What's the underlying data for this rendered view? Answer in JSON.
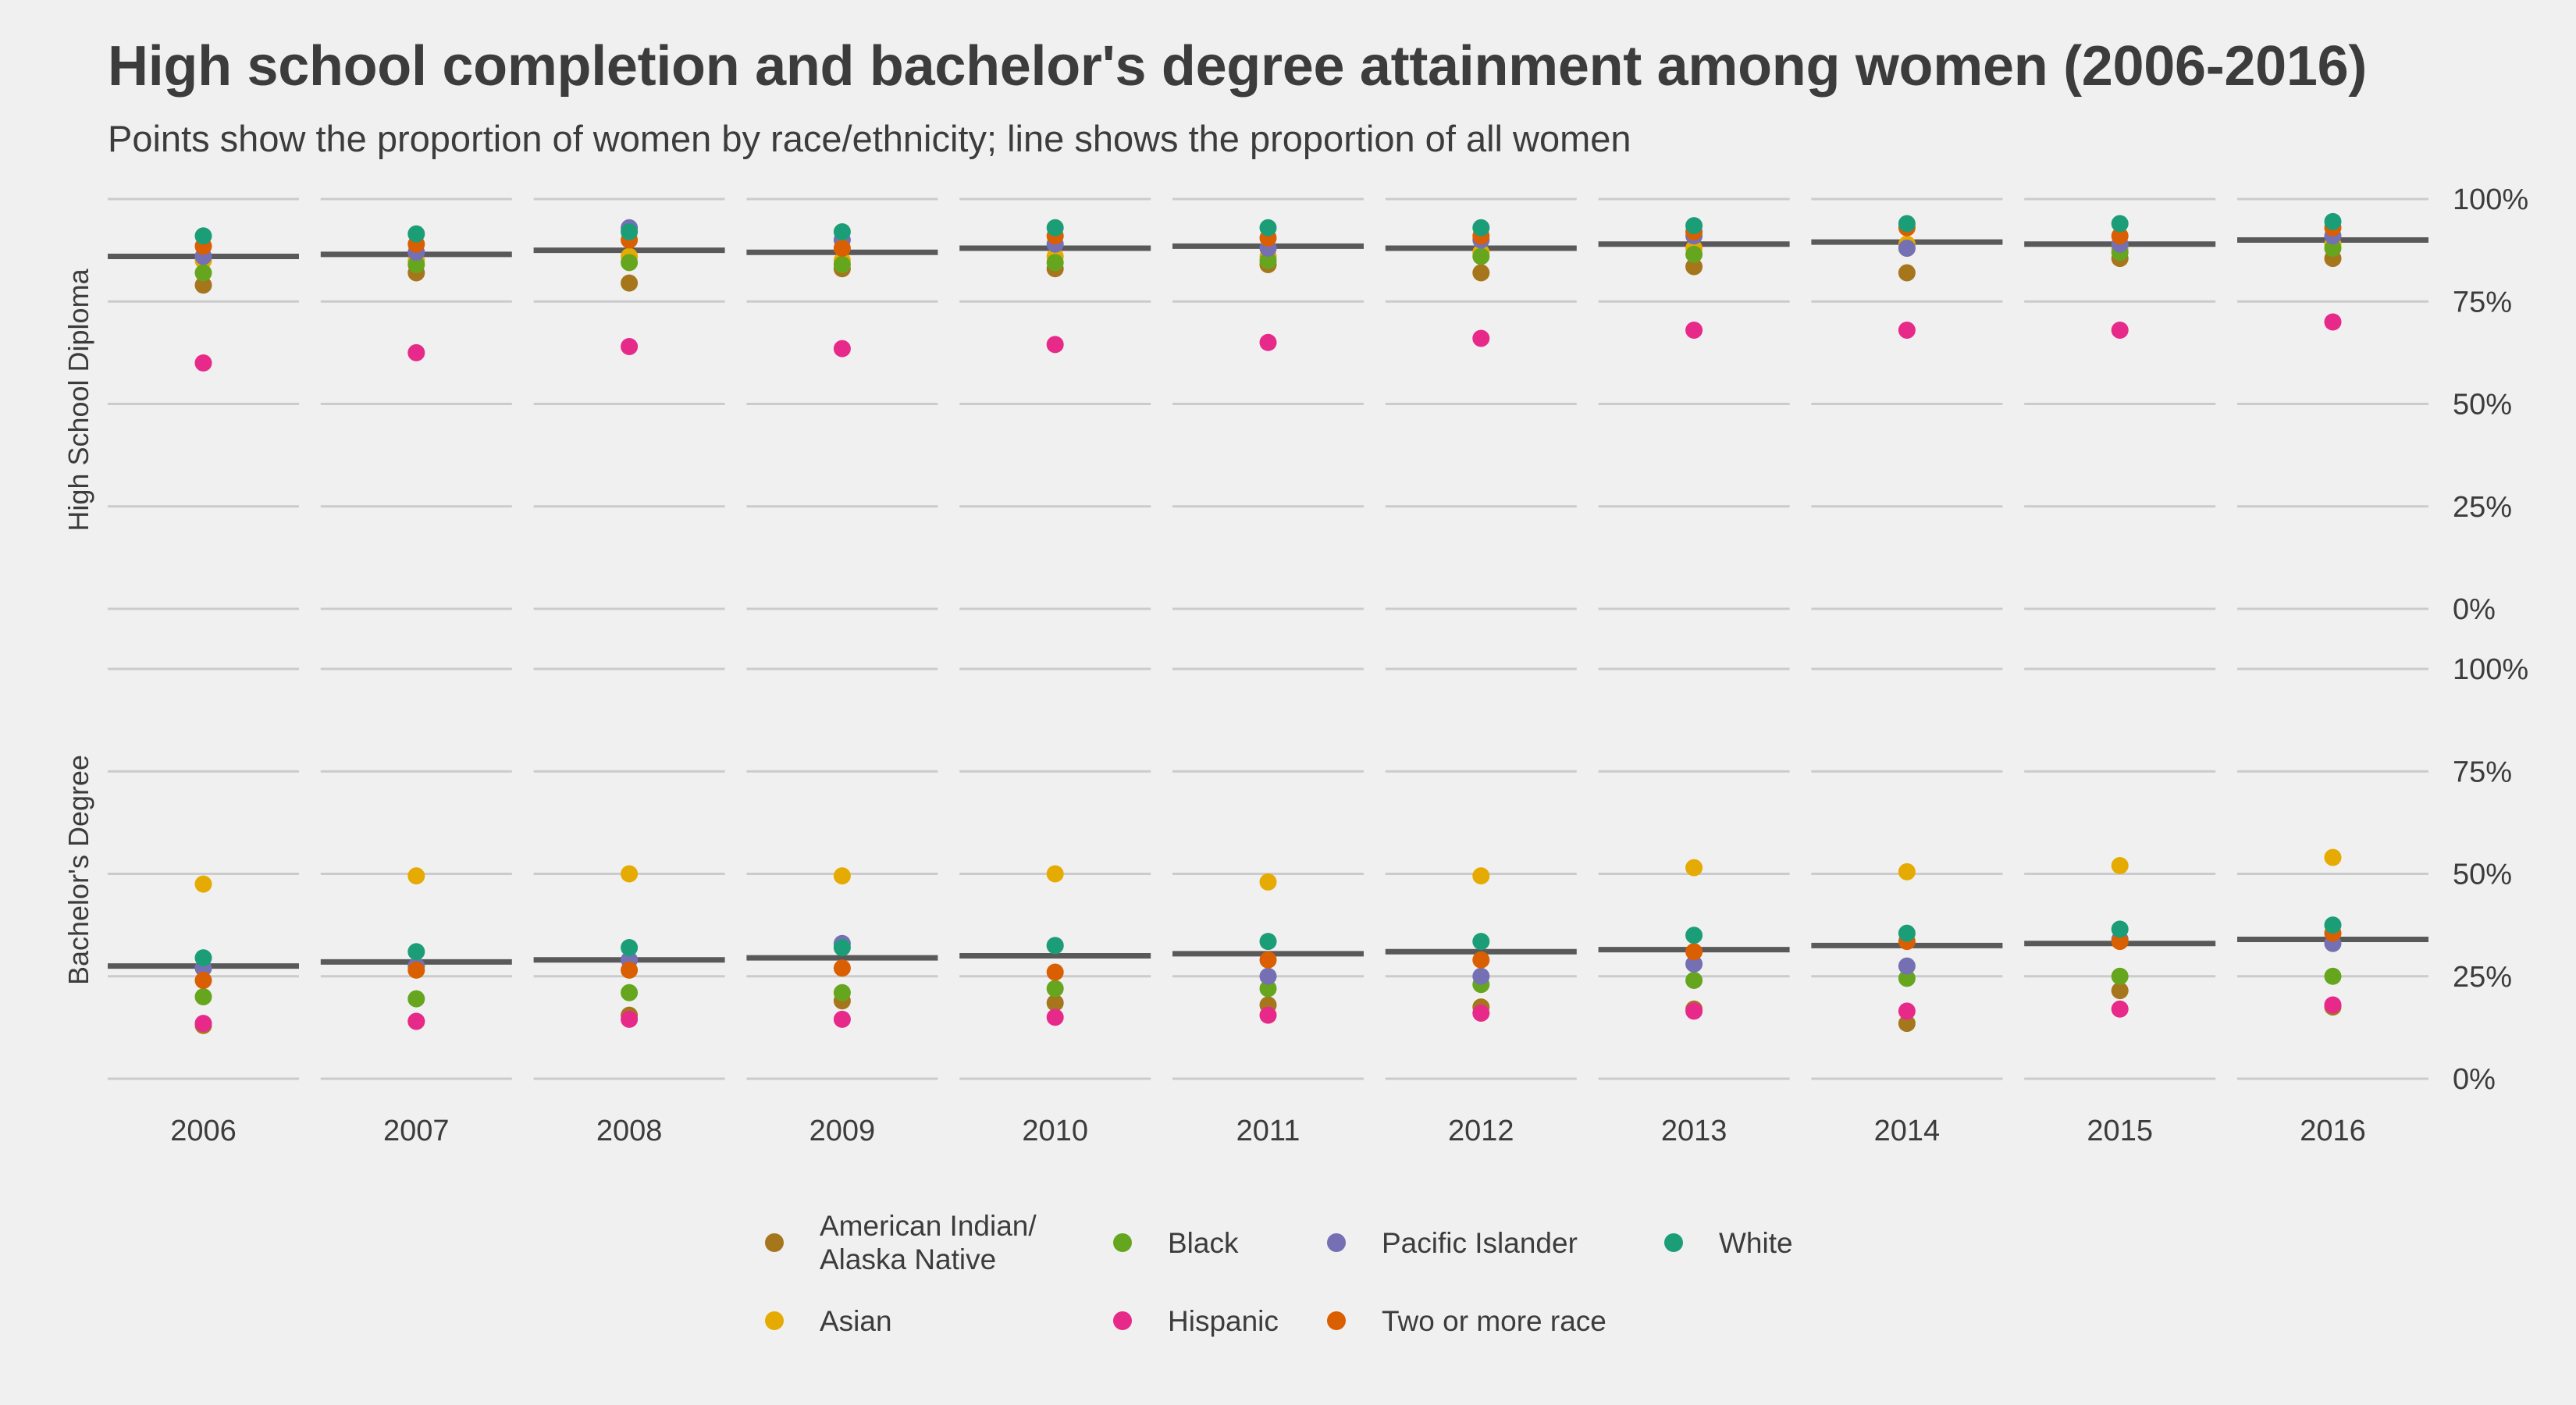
{
  "chart_data": {
    "type": "scatter",
    "title": "High school completion and bachelor's degree attainment among women (2006-2016)",
    "subtitle": "Points show the proportion of women by race/ethnicity; line shows the proportion of all women",
    "years": [
      "2006",
      "2007",
      "2008",
      "2009",
      "2010",
      "2011",
      "2012",
      "2013",
      "2014",
      "2015",
      "2016"
    ],
    "y_ticks": [
      "0%",
      "25%",
      "50%",
      "75%",
      "100%"
    ],
    "ylim": [
      0,
      100
    ],
    "grid": true,
    "legend_position": "bottom",
    "legend": [
      {
        "key": "aian",
        "label": "American Indian/\nAlaska Native",
        "color": "#a6761d"
      },
      {
        "key": "asian",
        "label": "Asian",
        "color": "#e6ab02"
      },
      {
        "key": "black",
        "label": "Black",
        "color": "#66a61e"
      },
      {
        "key": "hispanic",
        "label": "Hispanic",
        "color": "#e7298a"
      },
      {
        "key": "pacific",
        "label": "Pacific Islander",
        "color": "#7570b3"
      },
      {
        "key": "twoplus",
        "label": "Two or more race",
        "color": "#d95f02"
      },
      {
        "key": "white",
        "label": "White",
        "color": "#1b9e77"
      }
    ],
    "total_line_color": "#595959",
    "panels": [
      {
        "label": "High School Diploma",
        "total": [
          86,
          86.5,
          87.5,
          87,
          88,
          88.5,
          88,
          89,
          89.5,
          89,
          90
        ],
        "series": {
          "aian": [
            79,
            82,
            79.5,
            83,
            83,
            84,
            82,
            83.5,
            82,
            85.5,
            85.5
          ],
          "asian": [
            85,
            85,
            86,
            85,
            86,
            86,
            87,
            88,
            89,
            88,
            89
          ],
          "black": [
            82,
            84,
            84.5,
            84,
            84.5,
            85,
            86,
            86.5,
            88,
            87,
            88
          ],
          "hispanic": [
            60,
            62.5,
            64,
            63.5,
            64.5,
            65,
            66,
            68,
            68,
            68,
            70
          ],
          "pacific": [
            86,
            87,
            93,
            90,
            89,
            88,
            90,
            91,
            88,
            89,
            91
          ],
          "twoplus": [
            88.5,
            89,
            90,
            88,
            91,
            90.5,
            91,
            92,
            93,
            91,
            93
          ],
          "white": [
            91,
            91.5,
            92,
            92,
            93,
            93,
            93,
            93.5,
            94,
            94,
            94.5
          ]
        }
      },
      {
        "label": "Bachelor's Degree",
        "total": [
          27.5,
          28.5,
          29,
          29.5,
          30,
          30.5,
          31,
          31.5,
          32.5,
          33,
          34
        ],
        "series": {
          "aian": [
            13,
            14,
            15.5,
            19,
            18.5,
            18,
            17.5,
            17,
            13.5,
            21.5,
            17.5
          ],
          "asian": [
            47.5,
            49.5,
            50,
            49.5,
            50,
            48,
            49.5,
            51.5,
            50.5,
            52,
            54
          ],
          "black": [
            20,
            19.5,
            21,
            21,
            22,
            22,
            23,
            24,
            24.5,
            25,
            25
          ],
          "hispanic": [
            13.5,
            14,
            14.5,
            14.5,
            15,
            15.5,
            16,
            16.5,
            16.5,
            17,
            18
          ],
          "pacific": [
            27,
            27.5,
            29,
            33,
            32.5,
            25,
            25,
            28,
            27.5,
            34,
            33
          ],
          "twoplus": [
            24,
            26.5,
            26.5,
            27,
            26,
            29,
            29,
            31,
            33.5,
            33.5,
            35.5
          ],
          "white": [
            29.5,
            31,
            32,
            32,
            32.5,
            33.5,
            33.5,
            35,
            35.5,
            36.5,
            37.5
          ]
        }
      }
    ]
  }
}
